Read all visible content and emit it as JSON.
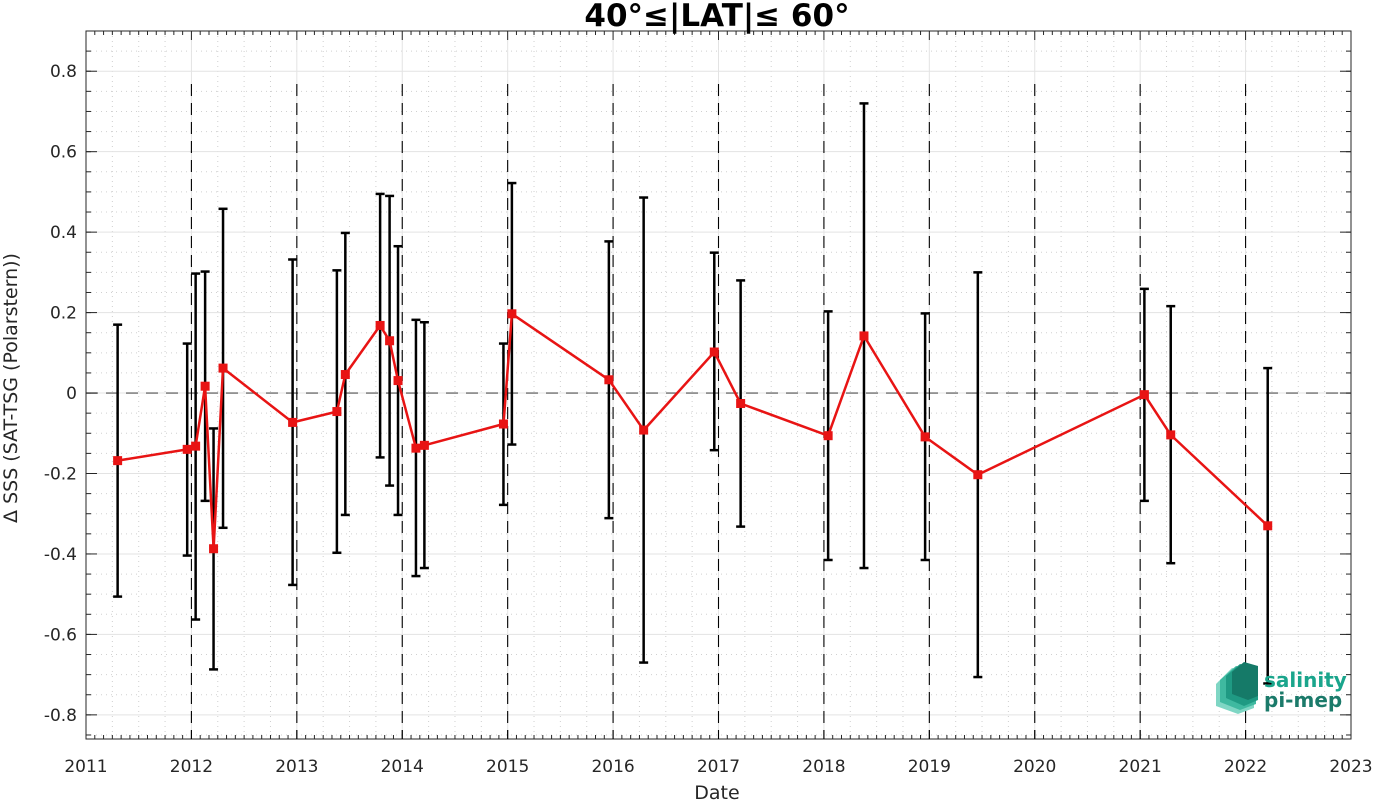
{
  "chart_data": {
    "type": "line",
    "title": "40°≤|LAT|≤ 60°",
    "xlabel": "Date",
    "ylabel": "Δ SSS (SAT-TSG (Polarstern))",
    "xlim": [
      2011,
      2023
    ],
    "ylim": [
      -0.86,
      0.9
    ],
    "x_ticks": [
      "2011",
      "2012",
      "2013",
      "2014",
      "2015",
      "2016",
      "2017",
      "2018",
      "2019",
      "2020",
      "2021",
      "2022",
      "2023"
    ],
    "y_ticks": [
      "-0.8",
      "-0.6",
      "-0.4",
      "-0.2",
      "0",
      "0.2",
      "0.4",
      "0.6",
      "0.8"
    ],
    "grid": true,
    "minor_grid": true,
    "zero_line": "dashed",
    "year_boundaries": "dashed vertical lines",
    "series": [
      {
        "color": "#e81414",
        "marker": "square",
        "errorbar_color": "#000000",
        "points": [
          {
            "x": 2011.3,
            "y": -0.168,
            "lo": -0.506,
            "hi": 0.17
          },
          {
            "x": 2011.96,
            "y": -0.14,
            "lo": -0.404,
            "hi": 0.123
          },
          {
            "x": 2012.04,
            "y": -0.132,
            "lo": -0.563,
            "hi": 0.297
          },
          {
            "x": 2012.13,
            "y": 0.017,
            "lo": -0.268,
            "hi": 0.302
          },
          {
            "x": 2012.21,
            "y": -0.387,
            "lo": -0.687,
            "hi": -0.088
          },
          {
            "x": 2012.3,
            "y": 0.062,
            "lo": -0.335,
            "hi": 0.458
          },
          {
            "x": 2012.96,
            "y": -0.073,
            "lo": -0.477,
            "hi": 0.332
          },
          {
            "x": 2013.38,
            "y": -0.046,
            "lo": -0.397,
            "hi": 0.305
          },
          {
            "x": 2013.46,
            "y": 0.046,
            "lo": -0.303,
            "hi": 0.398
          },
          {
            "x": 2013.79,
            "y": 0.168,
            "lo": -0.16,
            "hi": 0.495
          },
          {
            "x": 2013.88,
            "y": 0.13,
            "lo": -0.23,
            "hi": 0.49
          },
          {
            "x": 2013.96,
            "y": 0.031,
            "lo": -0.303,
            "hi": 0.365
          },
          {
            "x": 2014.13,
            "y": -0.137,
            "lo": -0.455,
            "hi": 0.182
          },
          {
            "x": 2014.21,
            "y": -0.13,
            "lo": -0.435,
            "hi": 0.176
          },
          {
            "x": 2014.96,
            "y": -0.077,
            "lo": -0.278,
            "hi": 0.123
          },
          {
            "x": 2015.04,
            "y": 0.197,
            "lo": -0.128,
            "hi": 0.522
          },
          {
            "x": 2015.96,
            "y": 0.033,
            "lo": -0.311,
            "hi": 0.377
          },
          {
            "x": 2016.29,
            "y": -0.092,
            "lo": -0.67,
            "hi": 0.486
          },
          {
            "x": 2016.96,
            "y": 0.102,
            "lo": -0.142,
            "hi": 0.349
          },
          {
            "x": 2017.21,
            "y": -0.026,
            "lo": -0.332,
            "hi": 0.28
          },
          {
            "x": 2018.04,
            "y": -0.106,
            "lo": -0.415,
            "hi": 0.203
          },
          {
            "x": 2018.38,
            "y": 0.142,
            "lo": -0.435,
            "hi": 0.72
          },
          {
            "x": 2018.96,
            "y": -0.109,
            "lo": -0.415,
            "hi": 0.198
          },
          {
            "x": 2019.46,
            "y": -0.203,
            "lo": -0.706,
            "hi": 0.3
          },
          {
            "x": 2021.04,
            "y": -0.004,
            "lo": -0.268,
            "hi": 0.259
          },
          {
            "x": 2021.29,
            "y": -0.104,
            "lo": -0.423,
            "hi": 0.216
          },
          {
            "x": 2022.21,
            "y": -0.33,
            "lo": -0.722,
            "hi": 0.062
          }
        ]
      }
    ]
  },
  "logo": {
    "line1": "salinity",
    "line2": "pi-mep",
    "line1_color": "#1aa58c",
    "line2_color": "#1b7a6a"
  }
}
